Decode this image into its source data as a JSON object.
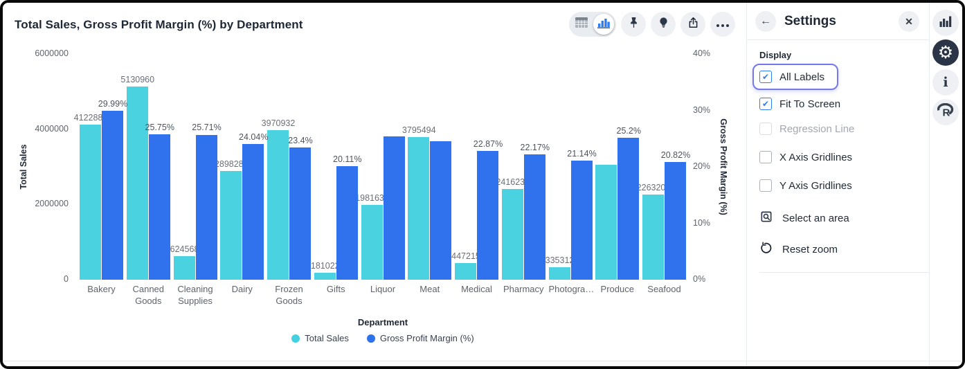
{
  "chart_data": {
    "type": "bar",
    "title": "Total Sales, Gross Profit Margin (%) by Department",
    "xlabel": "Department",
    "categories": [
      "Bakery",
      "Canned Goods",
      "Cleaning Supplies",
      "Dairy",
      "Frozen Goods",
      "Gifts",
      "Liquor",
      "Meat",
      "Medical",
      "Pharmacy",
      "Photogra…",
      "Produce",
      "Seafood"
    ],
    "series": [
      {
        "name": "Total Sales",
        "axis": "left",
        "color": "#4bd2e0",
        "values": [
          4122881,
          5130960,
          624568,
          2898285,
          3970932,
          181022,
          1981634,
          3795494,
          447215,
          2416230,
          335312,
          3050000,
          2263205
        ],
        "labels": [
          "4122881",
          "5130960",
          "624568",
          "2898285",
          "3970932",
          "181022",
          "1981634",
          "3795494",
          "447215",
          "2416230",
          "335312",
          null,
          "2263205"
        ]
      },
      {
        "name": "Gross Profit Margin (%)",
        "axis": "right",
        "color": "#3071ed",
        "values": [
          29.99,
          25.75,
          25.71,
          24.04,
          23.4,
          20.11,
          25.4,
          24.6,
          22.87,
          22.17,
          21.14,
          25.2,
          20.82
        ],
        "labels": [
          "29.99%",
          "25.75%",
          "25.71%",
          "24.04%",
          "23.4%",
          "20.11%",
          null,
          null,
          "22.87%",
          "22.17%",
          "21.14%",
          "25.2%",
          "20.82%"
        ]
      }
    ],
    "y_left": {
      "label": "Total Sales",
      "max": 6000000,
      "ticks": [
        {
          "v": 6000000,
          "t": "6000000"
        },
        {
          "v": 4000000,
          "t": "4000000"
        },
        {
          "v": 2000000,
          "t": "2000000"
        },
        {
          "v": 0,
          "t": "0"
        }
      ]
    },
    "y_right": {
      "label": "Gross Profit Margin (%)",
      "max": 40,
      "ticks": [
        {
          "v": 40,
          "t": "40%"
        },
        {
          "v": 30,
          "t": "30%"
        },
        {
          "v": 20,
          "t": "20%"
        },
        {
          "v": 10,
          "t": "10%"
        },
        {
          "v": 0,
          "t": "0%"
        }
      ]
    },
    "legend": [
      {
        "label": "Total Sales",
        "color": "#45d0e2"
      },
      {
        "label": "Gross Profit Margin (%)",
        "color": "#2d72ea"
      }
    ],
    "gridlines": false,
    "legend_position": "bottom"
  },
  "toolbar": {
    "view_toggle": [
      "table-view",
      "chart-view"
    ],
    "selected_view": "chart-view",
    "icons": [
      "pin-icon",
      "bulb-icon",
      "share-icon",
      "more-icon"
    ]
  },
  "settings": {
    "title": "Settings",
    "section": "Display",
    "checkboxes": [
      {
        "label": "All Labels",
        "checked": true,
        "focused": true,
        "disabled": false
      },
      {
        "label": "Fit To Screen",
        "checked": true,
        "focused": false,
        "disabled": false
      },
      {
        "label": "Regression Line",
        "checked": false,
        "focused": false,
        "disabled": true
      },
      {
        "label": "X Axis Gridlines",
        "checked": false,
        "focused": false,
        "disabled": false
      },
      {
        "label": "Y Axis Gridlines",
        "checked": false,
        "focused": false,
        "disabled": false
      }
    ],
    "actions": [
      {
        "label": "Select an area",
        "icon": "select-area-icon"
      },
      {
        "label": "Reset zoom",
        "icon": "reset-zoom-icon"
      }
    ]
  },
  "right_rail": {
    "icons": [
      "chart-icon",
      "gear-icon",
      "info-icon",
      "r-logo-icon"
    ],
    "active": "gear-icon"
  },
  "colors": {
    "accent_blue": "#3071ed",
    "accent_cyan": "#4bd2e0",
    "focus_ring": "#7478e9",
    "checkbox_blue": "#2e7bf2",
    "dark_icon": "#2b3648"
  }
}
